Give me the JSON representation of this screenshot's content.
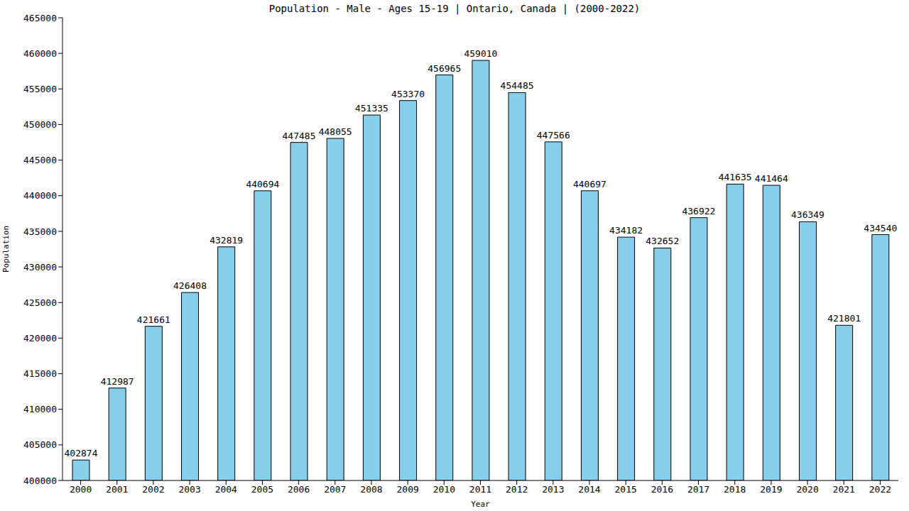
{
  "chart_data": {
    "type": "bar",
    "title": "Population - Male - Ages 15-19 | Ontario, Canada |  (2000-2022)",
    "x_label": "Year",
    "y_label": "Population",
    "categories": [
      "2000",
      "2001",
      "2002",
      "2003",
      "2004",
      "2005",
      "2006",
      "2007",
      "2008",
      "2009",
      "2010",
      "2011",
      "2012",
      "2013",
      "2014",
      "2015",
      "2016",
      "2017",
      "2018",
      "2019",
      "2020",
      "2021",
      "2022"
    ],
    "values": [
      402874,
      412987,
      421661,
      426408,
      432819,
      440694,
      447485,
      448055,
      451335,
      453370,
      456965,
      459010,
      454485,
      447566,
      440697,
      434182,
      432652,
      436922,
      441635,
      441464,
      436349,
      421801,
      434540
    ],
    "color": "#87ceeb",
    "ylim": [
      400000,
      465000
    ],
    "yticks": [
      400000,
      405000,
      410000,
      415000,
      420000,
      425000,
      430000,
      435000,
      440000,
      445000,
      450000,
      455000,
      460000,
      465000
    ],
    "grid": false,
    "data_labels": true
  }
}
